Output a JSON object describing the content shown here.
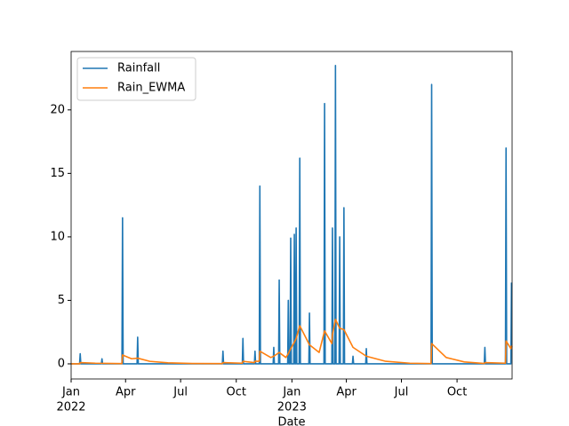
{
  "chart_data": {
    "type": "line",
    "xlabel": "Date",
    "legend": "upper left",
    "grid": false,
    "xlim": [
      0,
      729
    ],
    "ylim": [
      -1.19,
      24.6
    ],
    "yticks": [
      0,
      5,
      10,
      15,
      20
    ],
    "xticks": [
      {
        "value": 0,
        "label": "Jan"
      },
      {
        "value": 90,
        "label": "Apr"
      },
      {
        "value": 181,
        "label": "Jul"
      },
      {
        "value": 273,
        "label": "Oct"
      },
      {
        "value": 365,
        "label": "Jan"
      },
      {
        "value": 455,
        "label": "Apr"
      },
      {
        "value": 546,
        "label": "Jul"
      },
      {
        "value": 638,
        "label": "Oct"
      }
    ],
    "year_labels": [
      {
        "value": 0,
        "label": "2022"
      },
      {
        "value": 365,
        "label": "2023"
      }
    ],
    "series": [
      {
        "name": "Rainfall",
        "color": "#1f77b4",
        "x": [
          0,
          14,
          15,
          16,
          50,
          51,
          52,
          84,
          85,
          86,
          109,
          110,
          111,
          250,
          251,
          252,
          283,
          284,
          285,
          303,
          304,
          305,
          311,
          312,
          313,
          334,
          335,
          336,
          343,
          344,
          345,
          358,
          359,
          360,
          362,
          363,
          364,
          368,
          369,
          370,
          371,
          372,
          373,
          377,
          378,
          379,
          393,
          394,
          395,
          418,
          419,
          420,
          431,
          432,
          433,
          436,
          437,
          438,
          443,
          444,
          445,
          450,
          451,
          452,
          465,
          466,
          467,
          487,
          488,
          489,
          595,
          596,
          597,
          683,
          684,
          685,
          718,
          719,
          720,
          727,
          728
        ],
        "values": [
          0,
          0,
          0.8,
          0,
          0,
          0.4,
          0,
          0,
          11.5,
          0,
          0,
          2.1,
          0,
          0,
          1.0,
          0,
          0,
          2.0,
          0,
          0,
          1.0,
          0,
          0,
          14.0,
          0,
          0,
          1.3,
          0,
          0,
          6.6,
          0,
          0,
          5.0,
          0,
          0,
          9.9,
          0,
          0,
          10.2,
          0,
          0,
          10.7,
          0,
          0,
          16.2,
          0,
          0,
          4.0,
          0,
          0,
          20.5,
          0,
          0,
          10.7,
          0,
          0,
          23.5,
          0,
          0,
          10.0,
          0,
          0,
          12.3,
          0,
          0,
          0.6,
          0,
          0,
          1.2,
          0,
          0,
          22.0,
          0,
          0,
          1.3,
          0,
          0,
          17.0,
          0,
          0,
          6.4
        ]
      },
      {
        "name": "Rain_EWMA",
        "color": "#ff7f0e",
        "x": [
          0,
          14,
          15,
          40,
          84,
          85,
          100,
          110,
          130,
          160,
          200,
          250,
          251,
          283,
          284,
          303,
          304,
          311,
          312,
          330,
          335,
          344,
          355,
          359,
          363,
          369,
          372,
          378,
          394,
          410,
          419,
          431,
          432,
          437,
          444,
          451,
          466,
          488,
          520,
          560,
          595,
          596,
          620,
          650,
          683,
          684,
          718,
          719,
          727,
          728,
          729
        ],
        "values": [
          0,
          0,
          0.1,
          0.05,
          0.02,
          0.7,
          0.4,
          0.45,
          0.2,
          0.08,
          0.03,
          0.02,
          0.1,
          0.05,
          0.2,
          0.1,
          0.2,
          0.2,
          1.0,
          0.5,
          0.6,
          0.9,
          0.5,
          0.8,
          1.2,
          1.7,
          2.0,
          3.0,
          1.5,
          0.9,
          2.6,
          1.6,
          2.3,
          3.5,
          2.8,
          2.7,
          1.3,
          0.6,
          0.2,
          0.05,
          0.02,
          1.6,
          0.5,
          0.15,
          0.03,
          0.1,
          0.05,
          1.8,
          1.2,
          1.4,
          1.3
        ]
      }
    ]
  }
}
